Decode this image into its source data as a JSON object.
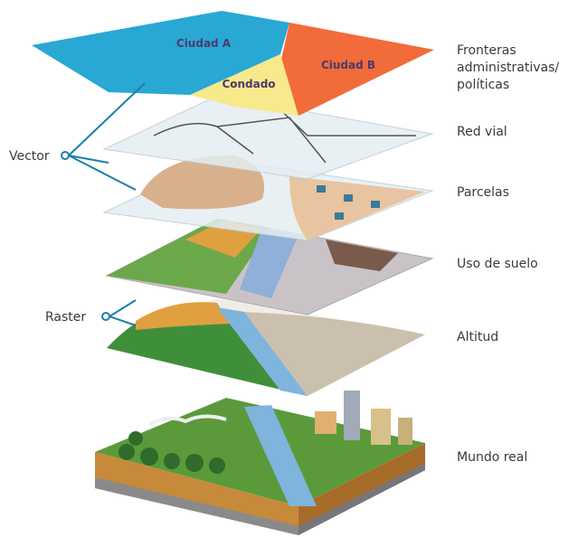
{
  "regions": [
    "Ciudad A",
    "Condado",
    "Ciudad B"
  ],
  "layers": [
    {
      "label_lines": [
        "Fronteras",
        "administrativas/",
        "políticas"
      ]
    },
    {
      "label_lines": [
        "Red vial"
      ]
    },
    {
      "label_lines": [
        "Parcelas"
      ]
    },
    {
      "label_lines": [
        "Uso de suelo"
      ]
    },
    {
      "label_lines": [
        "Altitud"
      ]
    },
    {
      "label_lines": [
        "Mundo real"
      ]
    }
  ],
  "groups": [
    "Vector",
    "Raster"
  ]
}
